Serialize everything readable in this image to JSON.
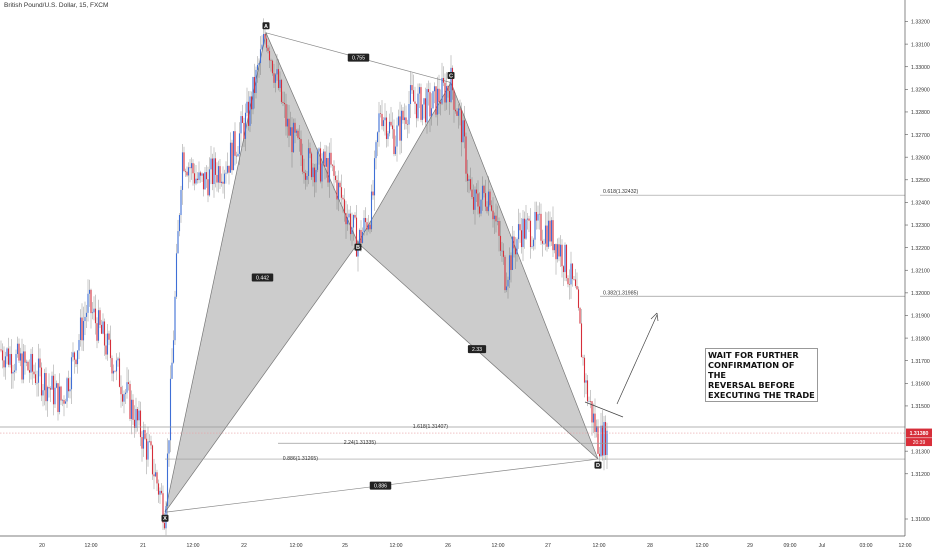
{
  "chart_data": {
    "type": "candlestick",
    "title": "British Pound/U.S. Dollar, 15, FXCM",
    "symbol": "British Pound/U.S. Dollar",
    "interval": "15",
    "source": "FXCM",
    "ylim": [
      1.3095,
      1.3322
    ],
    "y_ticks": [
      "1.31000",
      "1.31200",
      "1.31300",
      "1.31500",
      "1.31600",
      "1.31700",
      "1.31800",
      "1.31900",
      "1.32000",
      "1.32100",
      "1.32200",
      "1.32300",
      "1.32400",
      "1.32500",
      "1.32600",
      "1.32700",
      "1.32800",
      "1.32900",
      "1.33000",
      "1.33100",
      "1.33200"
    ],
    "x_ticks": [
      "20",
      "12:00",
      "21",
      "12:00",
      "22",
      "12:00",
      "25",
      "12:00",
      "26",
      "12:00",
      "27",
      "12:00",
      "28",
      "12:00",
      "29",
      "09:00",
      "Jul",
      "03:00",
      "12:00"
    ],
    "current_price": "1.31380",
    "countdown": "20:39",
    "pattern": {
      "points": [
        {
          "label": "X",
          "price": 1.3103
        },
        {
          "label": "A",
          "price": 1.3315
        },
        {
          "label": "B",
          "price": 1.3222
        },
        {
          "label": "C",
          "price": 1.3293
        },
        {
          "label": "D",
          "price": 1.31265
        }
      ],
      "ratios": [
        {
          "between": "XA-AB",
          "label": "0.442"
        },
        {
          "between": "AB-AC",
          "label": "0.755"
        },
        {
          "between": "BC-CD",
          "label": "2.33"
        },
        {
          "between": "XA-XD",
          "label": "0.886"
        }
      ]
    },
    "levels": [
      {
        "label": "0.618(1.32432)",
        "price": 1.32432
      },
      {
        "label": "0.382(1.31985)",
        "price": 1.31985
      },
      {
        "label": "1.618(1.31407)",
        "price": 1.31407
      },
      {
        "label": "2.24(1.31335)",
        "price": 1.31335
      },
      {
        "label": "0.886(1.31265)",
        "price": 1.31265
      }
    ],
    "annotation": "WAIT FOR FURTHER\nCONFIRMATION OF THE\nREVERSAL BEFORE\nEXECUTING THE TRADE",
    "colors": {
      "up": "#3f6fd6",
      "down": "#d62f3a",
      "pattern_fill": "#b8b8b8",
      "price_tag": "#d62f3a"
    }
  }
}
